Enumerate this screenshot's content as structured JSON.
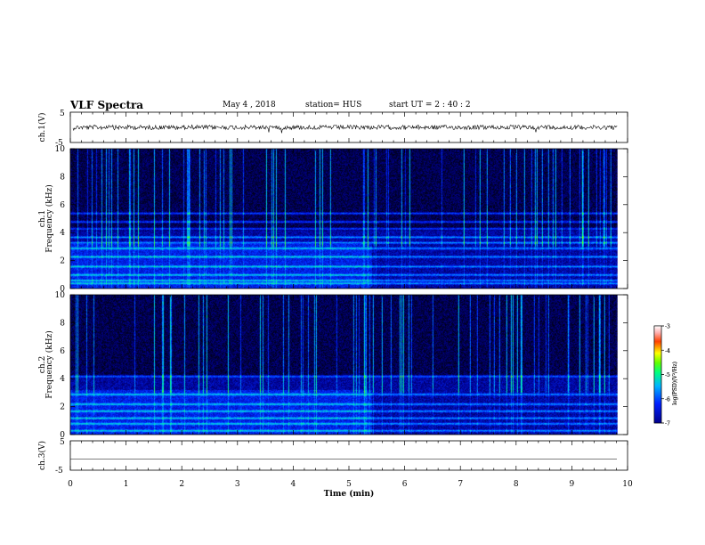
{
  "header": {
    "title": "VLF Spectra",
    "date": "May 4  , 2018",
    "station": "station= HUS",
    "start": "start  UT  =   2  : 40 : 2"
  },
  "chart_data": [
    {
      "type": "line",
      "panel": "waveform-ch1",
      "ylabel": "ch.1(V)",
      "ylim": [
        -5,
        5
      ],
      "yticks": [
        "5",
        "-5"
      ],
      "xlim": [
        0,
        10
      ],
      "x": [
        0,
        10
      ],
      "series": [
        {
          "values": [
            0,
            0
          ]
        }
      ],
      "line_color": "#000000"
    },
    {
      "type": "heatmap",
      "panel": "spectrogram-ch1",
      "ylabel": "ch.1  Frequency (kHz)",
      "ylabel_ch": "ch.1",
      "ylabel_freq": "Frequency (kHz)",
      "ylim": [
        0,
        10
      ],
      "yticks": [
        "0",
        "2",
        "4",
        "6",
        "8",
        "10"
      ],
      "xlim": [
        0,
        10
      ],
      "data_end_min": 9.82,
      "horizontal_bands_khz": [
        0.4,
        0.6,
        1.0,
        1.6,
        2.3,
        2.9,
        3.3,
        3.7,
        4.3,
        4.8,
        5.4
      ],
      "colorbar": {
        "label": "log(PSD)(V²/Hz)",
        "range": [
          -7,
          -3
        ],
        "ticks": [
          "-3",
          "-4",
          "-5",
          "-6",
          "-7"
        ]
      }
    },
    {
      "type": "heatmap",
      "panel": "spectrogram-ch2",
      "ylabel": "ch.2  Frequency (kHz)",
      "ylabel_ch": "ch.2",
      "ylabel_freq": "Frequency (kHz)",
      "ylim": [
        0,
        10
      ],
      "yticks": [
        "0",
        "2",
        "4",
        "6",
        "8",
        "10"
      ],
      "xlim": [
        0,
        10
      ],
      "data_end_min": 9.82,
      "horizontal_bands_khz": [
        0.3,
        0.8,
        1.2,
        1.7,
        2.2,
        2.9,
        4.2
      ],
      "colorbar": {
        "label": "log(PSD)(V²/Hz)",
        "range": [
          -7,
          -3
        ],
        "ticks": [
          "-3",
          "-4",
          "-5",
          "-6",
          "-7"
        ]
      }
    },
    {
      "type": "line",
      "panel": "waveform-ch3",
      "ylabel": "ch.3(V)",
      "ylim": [
        -5,
        5
      ],
      "yticks": [
        "5",
        "-5"
      ],
      "xlim": [
        0,
        10
      ],
      "xlabel": "Time  (min)",
      "xticks": [
        "0",
        "1",
        "2",
        "3",
        "4",
        "5",
        "6",
        "7",
        "8",
        "9",
        "10"
      ],
      "x": [
        0,
        10
      ],
      "series": [
        {
          "values": [
            0,
            0
          ]
        }
      ],
      "line_color": "#000000"
    }
  ]
}
